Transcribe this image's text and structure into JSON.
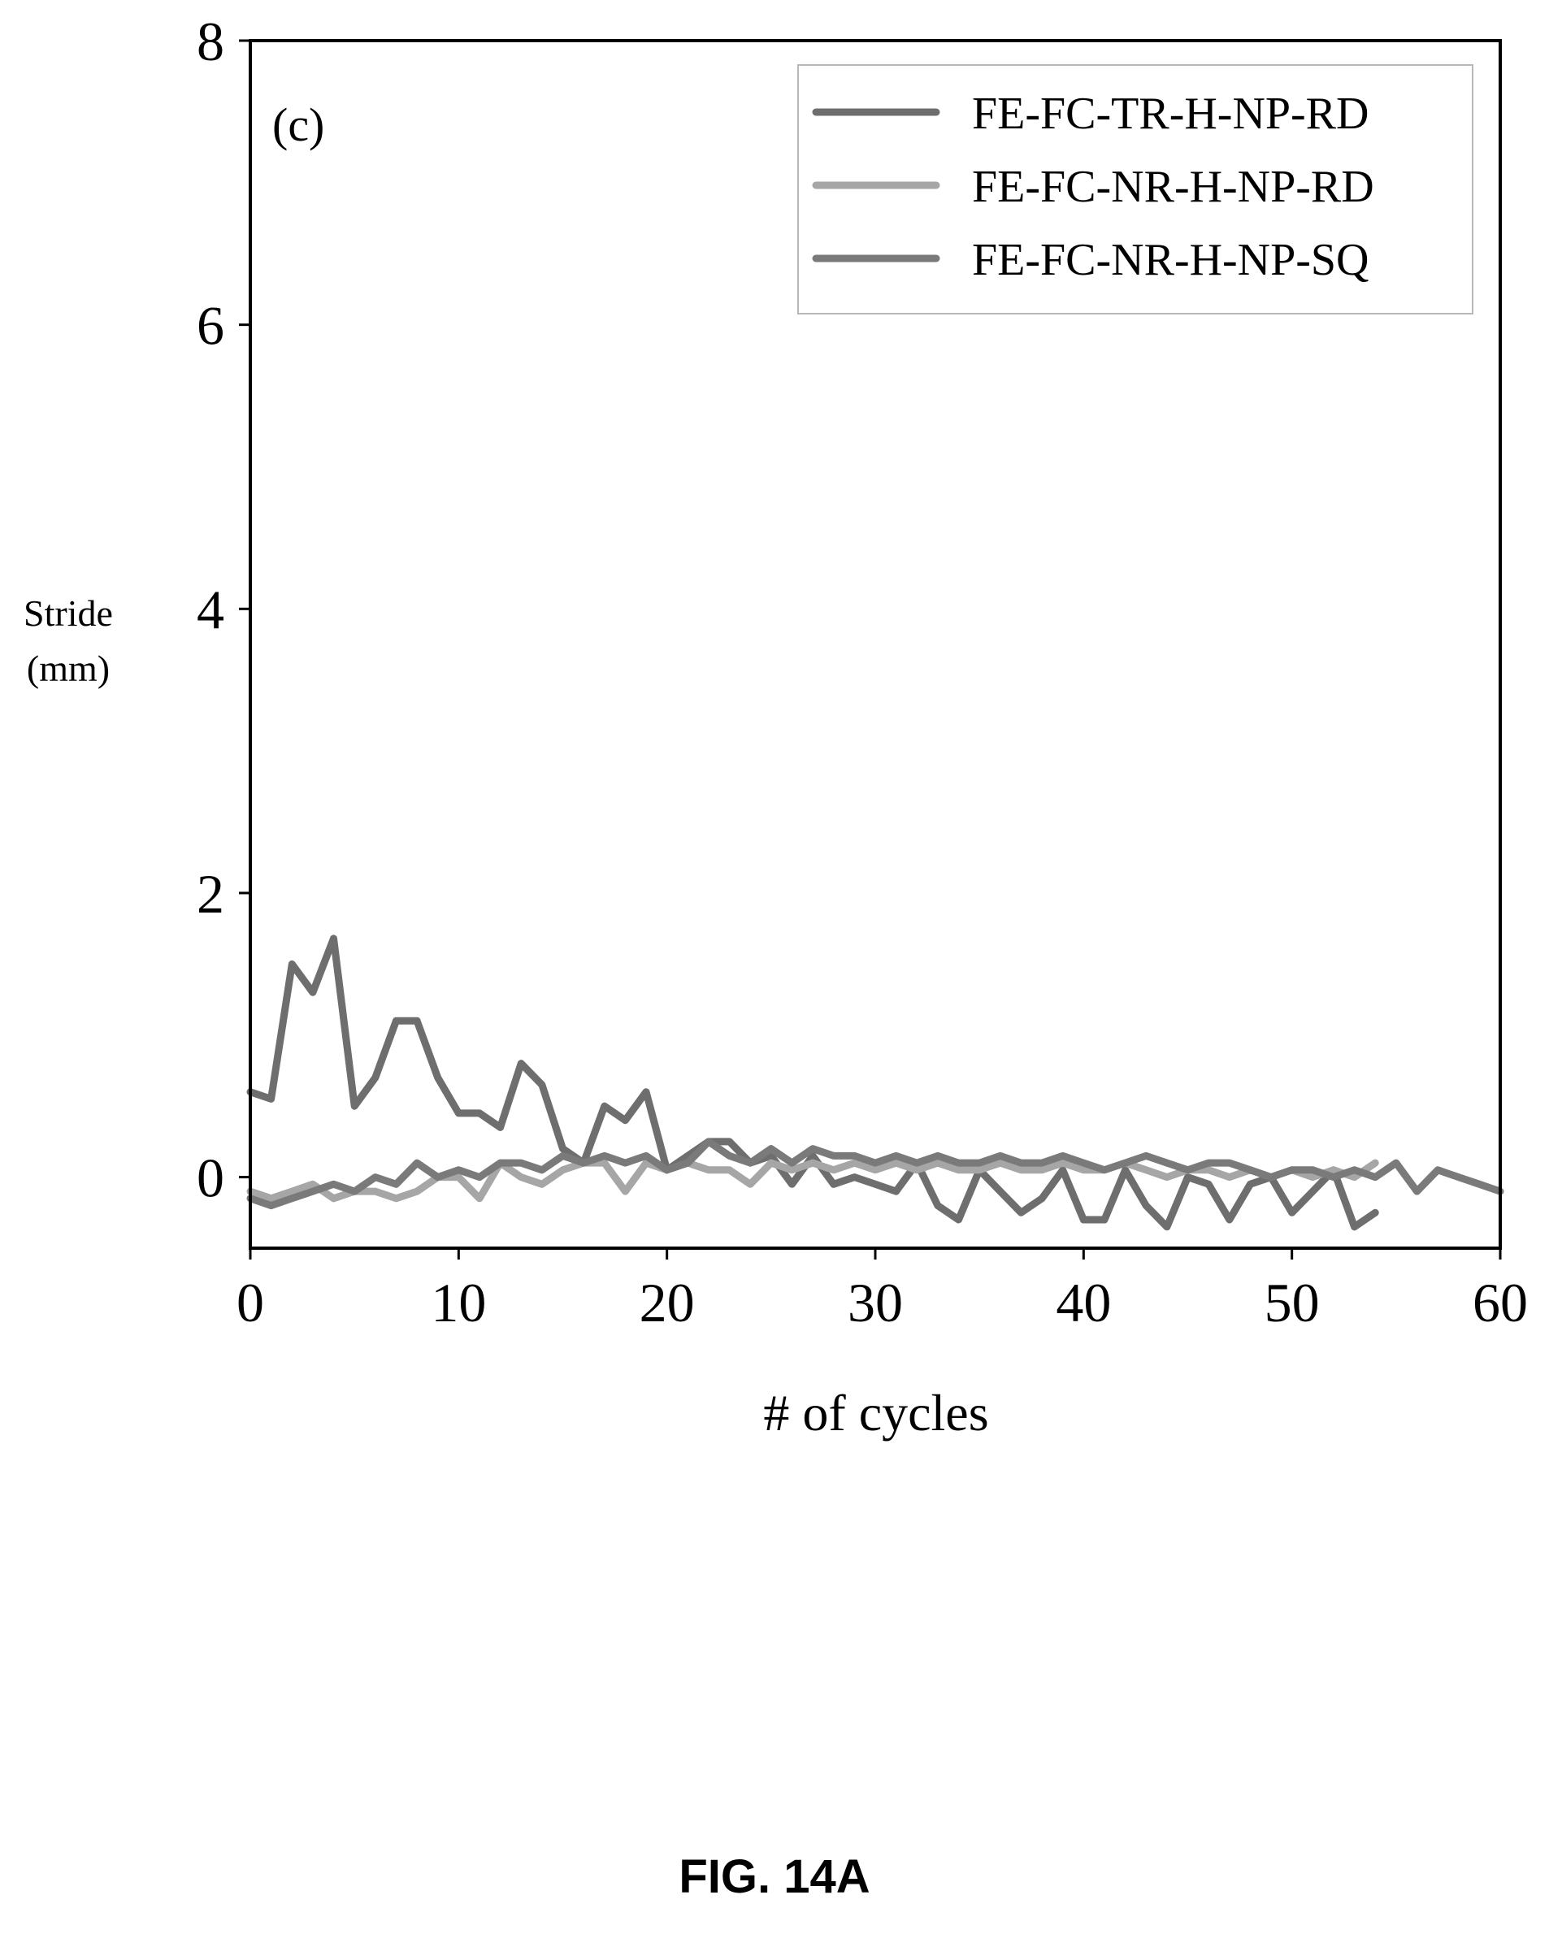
{
  "chart_data": {
    "type": "line",
    "panel_label": "(c)",
    "xlabel": "# of cycles",
    "ylabel_line1": "Stride",
    "ylabel_line2": "(mm)",
    "xlim": [
      0,
      60
    ],
    "ylim": [
      -0.5,
      8
    ],
    "xticks": [
      0,
      10,
      20,
      30,
      40,
      50,
      60
    ],
    "yticks": [
      0,
      2,
      4,
      6,
      8
    ],
    "grid": false,
    "legend_position": "top-right",
    "series": [
      {
        "name": "FE-FC-TR-H-NP-RD",
        "color": "#6e6e6e",
        "x": [
          0,
          1,
          2,
          3,
          4,
          5,
          6,
          7,
          8,
          9,
          10,
          11,
          12,
          13,
          14,
          15,
          16,
          17,
          18,
          19,
          20,
          21,
          22,
          23,
          24,
          25,
          26,
          27,
          28,
          29,
          30,
          31,
          32,
          33,
          34,
          35,
          36,
          37,
          38,
          39,
          40,
          41,
          42,
          43,
          44,
          45,
          46,
          47,
          48,
          49,
          50,
          51,
          52,
          53,
          54
        ],
        "y": [
          0.6,
          0.55,
          1.5,
          1.3,
          1.68,
          0.5,
          0.7,
          1.1,
          1.1,
          0.7,
          0.45,
          0.45,
          0.35,
          0.8,
          0.65,
          0.2,
          0.1,
          0.5,
          0.4,
          0.6,
          0.05,
          0.15,
          0.25,
          0.25,
          0.1,
          0.15,
          -0.05,
          0.15,
          -0.05,
          0.0,
          -0.05,
          -0.1,
          0.1,
          -0.2,
          -0.3,
          0.05,
          -0.1,
          -0.25,
          -0.15,
          0.05,
          -0.3,
          -0.3,
          0.05,
          -0.2,
          -0.35,
          0.0,
          -0.05,
          -0.3,
          -0.05,
          0.0,
          -0.25,
          -0.1,
          0.05,
          -0.35,
          -0.25
        ]
      },
      {
        "name": "FE-FC-NR-H-NP-RD",
        "color": "#a6a6a6",
        "x": [
          0,
          1,
          2,
          3,
          4,
          5,
          6,
          7,
          8,
          9,
          10,
          11,
          12,
          13,
          14,
          15,
          16,
          17,
          18,
          19,
          20,
          21,
          22,
          23,
          24,
          25,
          26,
          27,
          28,
          29,
          30,
          31,
          32,
          33,
          34,
          35,
          36,
          37,
          38,
          39,
          40,
          41,
          42,
          43,
          44,
          45,
          46,
          47,
          48,
          49,
          50,
          51,
          52,
          53,
          54
        ],
        "y": [
          -0.1,
          -0.15,
          -0.1,
          -0.05,
          -0.15,
          -0.1,
          -0.1,
          -0.15,
          -0.1,
          0.0,
          0.0,
          -0.15,
          0.1,
          0.0,
          -0.05,
          0.05,
          0.1,
          0.1,
          -0.1,
          0.1,
          0.05,
          0.1,
          0.05,
          0.05,
          -0.05,
          0.1,
          0.05,
          0.1,
          0.05,
          0.1,
          0.05,
          0.1,
          0.05,
          0.1,
          0.05,
          0.05,
          0.1,
          0.05,
          0.05,
          0.1,
          0.05,
          0.05,
          0.1,
          0.05,
          0.0,
          0.05,
          0.05,
          0.0,
          0.05,
          0.0,
          0.05,
          0.0,
          0.05,
          0.0,
          0.1
        ]
      },
      {
        "name": "FE-FC-NR-H-NP-SQ",
        "color": "#7a7a7a",
        "x": [
          0,
          1,
          2,
          3,
          4,
          5,
          6,
          7,
          8,
          9,
          10,
          11,
          12,
          13,
          14,
          15,
          16,
          17,
          18,
          19,
          20,
          21,
          22,
          23,
          24,
          25,
          26,
          27,
          28,
          29,
          30,
          31,
          32,
          33,
          34,
          35,
          36,
          37,
          38,
          39,
          40,
          41,
          42,
          43,
          44,
          45,
          46,
          47,
          48,
          49,
          50,
          51,
          52,
          53,
          54,
          55,
          56,
          57,
          58,
          59,
          60
        ],
        "y": [
          -0.15,
          -0.2,
          -0.15,
          -0.1,
          -0.05,
          -0.1,
          0.0,
          -0.05,
          0.1,
          0.0,
          0.05,
          0.0,
          0.1,
          0.1,
          0.05,
          0.15,
          0.1,
          0.15,
          0.1,
          0.15,
          0.05,
          0.1,
          0.25,
          0.15,
          0.1,
          0.2,
          0.1,
          0.2,
          0.15,
          0.15,
          0.1,
          0.15,
          0.1,
          0.15,
          0.1,
          0.1,
          0.15,
          0.1,
          0.1,
          0.15,
          0.1,
          0.05,
          0.1,
          0.15,
          0.1,
          0.05,
          0.1,
          0.1,
          0.05,
          0.0,
          0.05,
          0.05,
          0.0,
          0.05,
          0.0,
          0.1,
          -0.1,
          0.05,
          0.0,
          -0.05,
          -0.1
        ]
      }
    ]
  },
  "figure": {
    "caption": "FIG. 14A"
  }
}
